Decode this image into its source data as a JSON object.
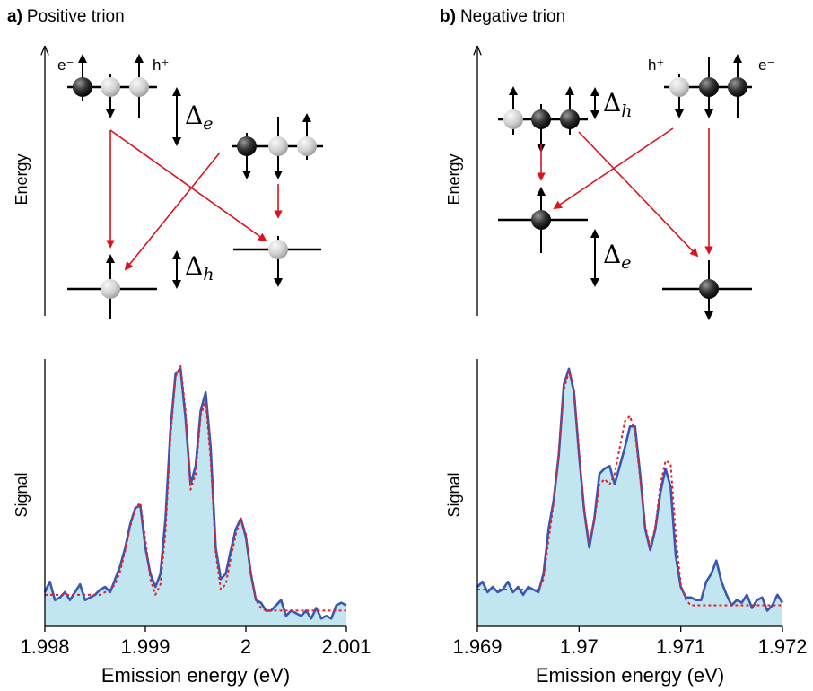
{
  "panels": [
    {
      "label": "a)",
      "title": "Positive trion",
      "axis_label": "Energy",
      "carriers": [
        "e⁻",
        "h⁺"
      ],
      "splittings": [
        {
          "symbol": "Δ",
          "subscript": "e"
        },
        {
          "symbol": "Δ",
          "subscript": "h"
        }
      ]
    },
    {
      "label": "b)",
      "title": "Negative trion",
      "axis_label": "Energy",
      "carriers": [
        "h⁺",
        "e⁻"
      ],
      "splittings": [
        {
          "symbol": "Δ",
          "subscript": "h"
        },
        {
          "symbol": "Δ",
          "subscript": "e"
        }
      ]
    }
  ],
  "chart_data": [
    {
      "type": "line",
      "xlabel": "Emission energy (eV)",
      "ylabel": "Signal",
      "x": [
        1.998,
        1.99805,
        1.9981,
        1.99815,
        1.9982,
        1.99825,
        1.9983,
        1.99835,
        1.9984,
        1.99845,
        1.9985,
        1.99855,
        1.9986,
        1.99865,
        1.9987,
        1.99875,
        1.9988,
        1.99885,
        1.9989,
        1.99895,
        1.999,
        1.99905,
        1.9991,
        1.99915,
        1.9992,
        1.99925,
        1.9993,
        1.99935,
        1.9994,
        1.99945,
        1.9995,
        1.99955,
        1.9996,
        1.99965,
        1.9997,
        1.99975,
        1.9998,
        1.99985,
        1.9999,
        1.99995,
        2,
        2.00005,
        2.0001,
        2.00015,
        2.0002,
        2.00025,
        2.0003,
        2.00035,
        2.0004,
        2.00045,
        2.0005,
        2.00055,
        2.0006,
        2.00065,
        2.0007,
        2.00075,
        2.0008,
        2.00085,
        2.0009,
        2.00095,
        2.001
      ],
      "series": [
        {
          "color": "#3a56b0",
          "fill": "#c2e6ef",
          "values": [
            0.13,
            0.17,
            0.1,
            0.11,
            0.13,
            0.1,
            0.13,
            0.16,
            0.1,
            0.11,
            0.12,
            0.14,
            0.15,
            0.13,
            0.18,
            0.23,
            0.3,
            0.39,
            0.45,
            0.46,
            0.3,
            0.2,
            0.15,
            0.2,
            0.41,
            0.75,
            0.96,
            0.98,
            0.79,
            0.54,
            0.61,
            0.82,
            0.89,
            0.68,
            0.3,
            0.18,
            0.2,
            0.29,
            0.37,
            0.41,
            0.34,
            0.2,
            0.1,
            0.09,
            0.06,
            0.06,
            0.08,
            0.1,
            0.04,
            0.06,
            0.05,
            0.04,
            0.06,
            0.03,
            0.07,
            0.03,
            0.04,
            0.03,
            0.08,
            0.09,
            0.08
          ]
        },
        {
          "color": "#e5202b",
          "dash": true,
          "values": [
            0.12,
            0.12,
            0.12,
            0.12,
            0.12,
            0.12,
            0.12,
            0.12,
            0.12,
            0.12,
            0.12,
            0.12,
            0.13,
            0.14,
            0.16,
            0.21,
            0.29,
            0.38,
            0.45,
            0.47,
            0.33,
            0.18,
            0.12,
            0.16,
            0.36,
            0.72,
            0.95,
            0.99,
            0.82,
            0.52,
            0.58,
            0.8,
            0.86,
            0.63,
            0.28,
            0.14,
            0.16,
            0.26,
            0.35,
            0.41,
            0.35,
            0.2,
            0.1,
            0.07,
            0.06,
            0.06,
            0.06,
            0.06,
            0.06,
            0.06,
            0.06,
            0.06,
            0.06,
            0.06,
            0.06,
            0.06,
            0.06,
            0.06,
            0.06,
            0.06,
            0.06
          ]
        }
      ],
      "xlim": [
        1.998,
        2.001
      ],
      "xticks": [
        1.998,
        1.999,
        2,
        2.001
      ],
      "ylim": [
        0,
        1
      ]
    },
    {
      "type": "line",
      "xlabel": "Emission energy (eV)",
      "ylabel": "Signal",
      "x": [
        1.969,
        1.96905,
        1.9691,
        1.96915,
        1.9692,
        1.96925,
        1.9693,
        1.96935,
        1.9694,
        1.96945,
        1.9695,
        1.96955,
        1.9696,
        1.96965,
        1.9697,
        1.96975,
        1.9698,
        1.96985,
        1.9699,
        1.96995,
        1.97,
        1.97005,
        1.9701,
        1.97015,
        1.9702,
        1.97025,
        1.9703,
        1.97035,
        1.9704,
        1.97045,
        1.9705,
        1.97055,
        1.9706,
        1.97065,
        1.9707,
        1.97075,
        1.9708,
        1.97085,
        1.9709,
        1.97095,
        1.971,
        1.97105,
        1.9711,
        1.97115,
        1.9712,
        1.97125,
        1.9713,
        1.97135,
        1.9714,
        1.97145,
        1.9715,
        1.97155,
        1.9716,
        1.97165,
        1.9717,
        1.97175,
        1.9718,
        1.97185,
        1.9719,
        1.97195,
        1.972
      ],
      "series": [
        {
          "color": "#3a56b0",
          "fill": "#c2e6ef",
          "values": [
            0.15,
            0.17,
            0.13,
            0.15,
            0.13,
            0.14,
            0.17,
            0.13,
            0.15,
            0.12,
            0.15,
            0.14,
            0.13,
            0.2,
            0.37,
            0.48,
            0.65,
            0.92,
            0.98,
            0.89,
            0.65,
            0.44,
            0.3,
            0.41,
            0.58,
            0.6,
            0.61,
            0.54,
            0.61,
            0.68,
            0.76,
            0.76,
            0.58,
            0.37,
            0.29,
            0.37,
            0.51,
            0.6,
            0.53,
            0.27,
            0.15,
            0.11,
            0.11,
            0.1,
            0.1,
            0.17,
            0.2,
            0.25,
            0.17,
            0.12,
            0.08,
            0.1,
            0.09,
            0.12,
            0.07,
            0.1,
            0.11,
            0.06,
            0.08,
            0.12,
            0.09
          ]
        },
        {
          "color": "#e5202b",
          "dash": true,
          "values": [
            0.14,
            0.14,
            0.14,
            0.14,
            0.14,
            0.14,
            0.14,
            0.14,
            0.14,
            0.14,
            0.14,
            0.14,
            0.14,
            0.18,
            0.33,
            0.47,
            0.66,
            0.9,
            0.97,
            0.9,
            0.66,
            0.44,
            0.32,
            0.4,
            0.54,
            0.56,
            0.54,
            0.58,
            0.68,
            0.78,
            0.8,
            0.74,
            0.56,
            0.38,
            0.3,
            0.38,
            0.54,
            0.63,
            0.62,
            0.35,
            0.16,
            0.1,
            0.08,
            0.08,
            0.08,
            0.08,
            0.08,
            0.08,
            0.08,
            0.08,
            0.08,
            0.08,
            0.08,
            0.08,
            0.08,
            0.08,
            0.08,
            0.08,
            0.08,
            0.08,
            0.08
          ]
        }
      ],
      "xlim": [
        1.969,
        1.972
      ],
      "xticks": [
        1.969,
        1.97,
        1.971,
        1.972
      ],
      "ylim": [
        0,
        1
      ]
    }
  ]
}
